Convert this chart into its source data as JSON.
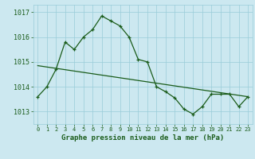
{
  "title": "Graphe pression niveau de la mer (hPa)",
  "background_color": "#cce8f0",
  "grid_color": "#99ccd9",
  "line_color": "#1a5c1a",
  "xlim": [
    -0.5,
    23.5
  ],
  "ylim": [
    1012.5,
    1017.3
  ],
  "yticks": [
    1013,
    1014,
    1015,
    1016,
    1017
  ],
  "xticks": [
    0,
    1,
    2,
    3,
    4,
    5,
    6,
    7,
    8,
    9,
    10,
    11,
    12,
    13,
    14,
    15,
    16,
    17,
    18,
    19,
    20,
    21,
    22,
    23
  ],
  "series1_x": [
    0,
    1,
    2,
    3,
    4,
    5,
    6,
    7,
    8,
    9,
    10,
    11,
    12,
    13,
    14,
    15,
    16,
    17,
    18,
    19,
    20,
    21,
    22,
    23
  ],
  "series1_y": [
    1013.6,
    1014.0,
    1014.7,
    1015.8,
    1015.5,
    1016.0,
    1016.3,
    1016.85,
    1016.65,
    1016.45,
    1016.0,
    1015.1,
    1015.0,
    1014.0,
    1013.8,
    1013.55,
    1013.1,
    1012.9,
    1013.2,
    1013.7,
    1013.7,
    1013.7,
    1013.2,
    1013.6
  ],
  "trend_x": [
    0,
    23
  ],
  "trend_y": [
    1014.85,
    1013.6
  ],
  "xlabel_fontsize": 6.5,
  "ytick_fontsize": 6,
  "xtick_fontsize": 5
}
